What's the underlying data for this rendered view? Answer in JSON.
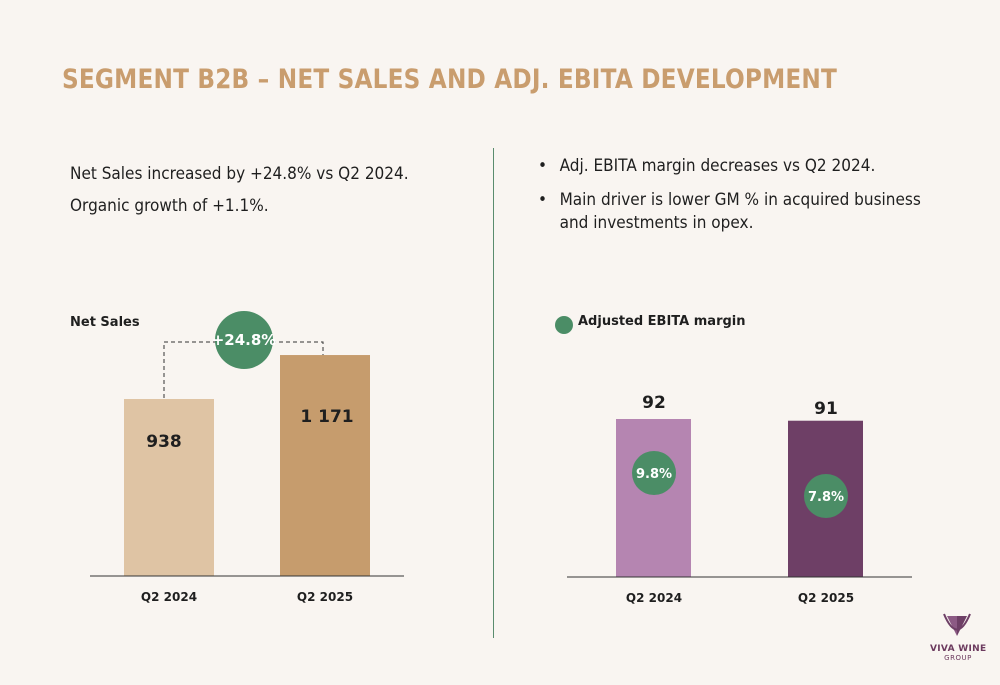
{
  "title": "SEGMENT B2B – NET SALES AND ADJ. EBITA DEVELOPMENT",
  "left_text": [
    "Net Sales increased by +24.8% vs Q2 2024.",
    "Organic growth of +1.1%."
  ],
  "bullets": [
    "Adj. EBITA margin decreases vs Q2 2024.",
    "Main driver is lower GM % in acquired business",
    "and investments in opex."
  ],
  "bullet_marker": "•",
  "logo": {
    "name": "VIVA WINE",
    "sub": "GROUP"
  },
  "chart_data": [
    {
      "type": "bar",
      "title": "Net Sales",
      "categories": [
        "Q2 2024",
        "Q2 2025"
      ],
      "values": [
        938,
        1171
      ],
      "value_labels": [
        "938",
        "1 171"
      ],
      "growth_label": "+24.8%",
      "colors": [
        "#dfc4a4",
        "#c69c6d"
      ],
      "ylim": [
        0,
        1400
      ]
    },
    {
      "type": "bar",
      "legend": "Adjusted EBITA margin",
      "categories": [
        "Q2 2024",
        "Q2 2025"
      ],
      "values": [
        92,
        91
      ],
      "value_labels": [
        "92",
        "91"
      ],
      "margins": [
        "9.8%",
        "7.8%"
      ],
      "colors": [
        "#b585b1",
        "#6e3f66"
      ],
      "ylim": [
        0,
        130
      ]
    }
  ],
  "colors": {
    "accent_green": "#4b8d66",
    "title": "#c99d6e",
    "divider": "#5a8c6e"
  }
}
